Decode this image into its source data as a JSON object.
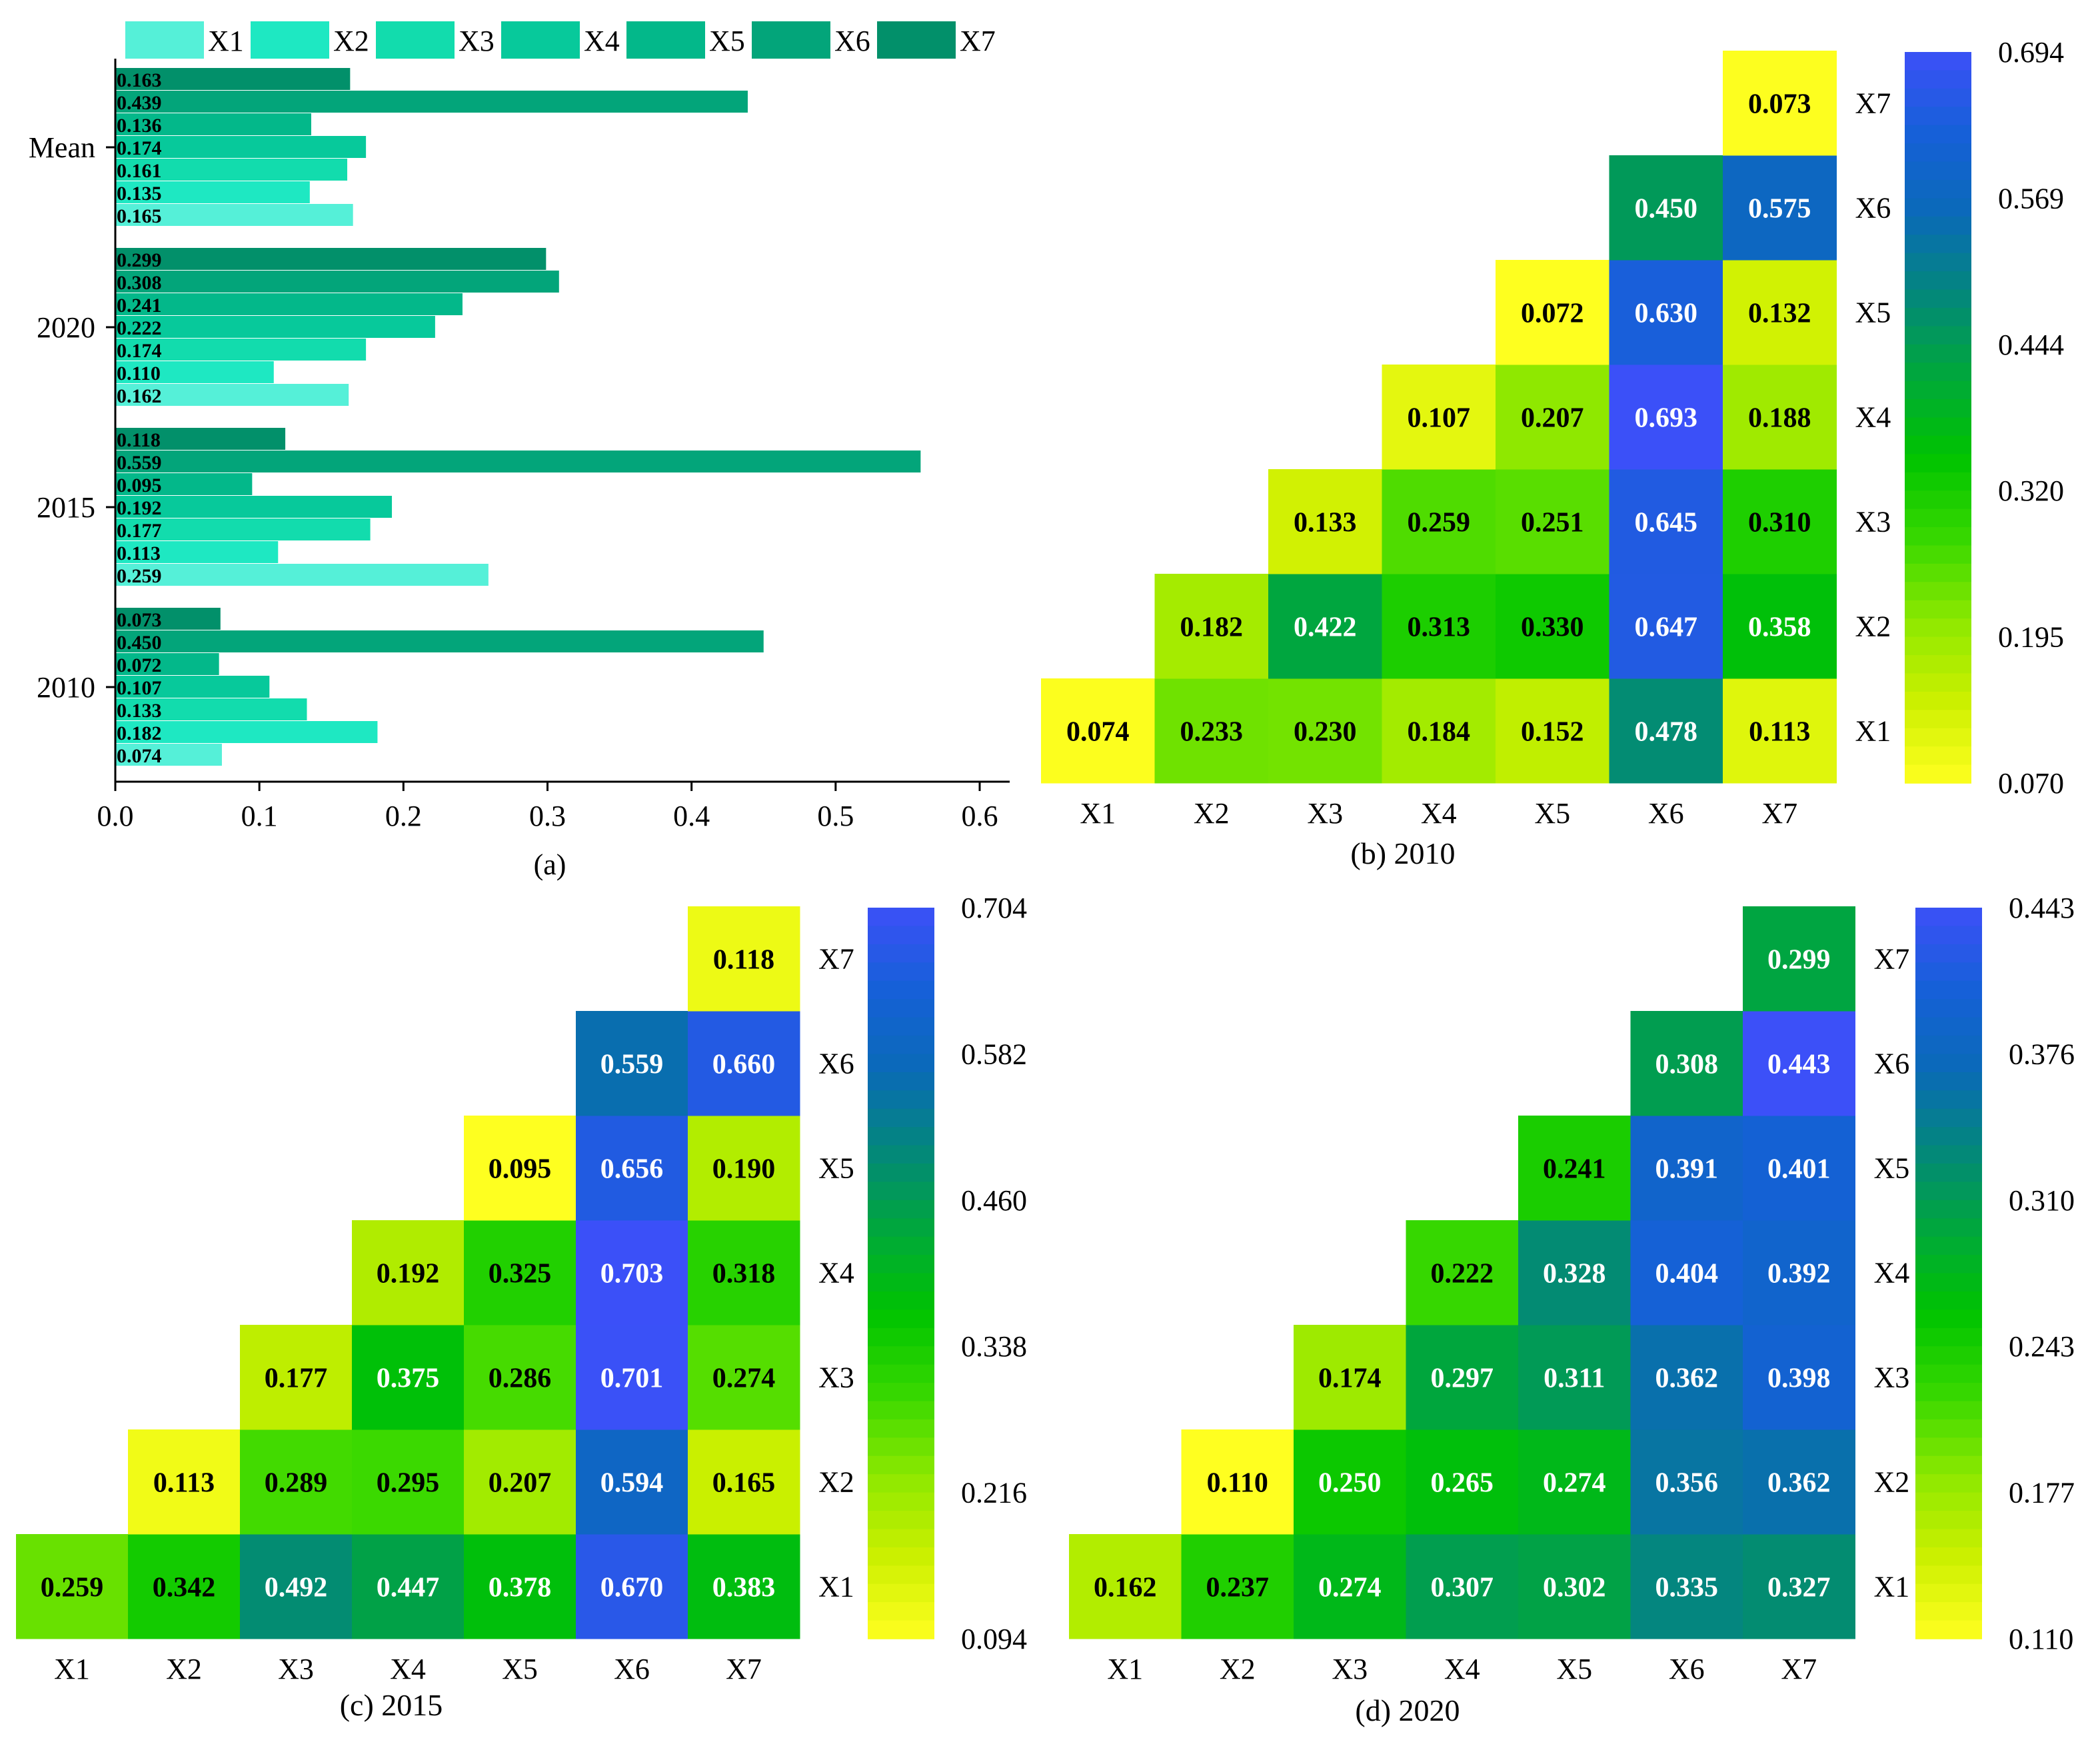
{
  "legend": [
    "X1",
    "X2",
    "X3",
    "X4",
    "X5",
    "X6",
    "X7"
  ],
  "palette": {
    "series": [
      "#55f0d8",
      "#1ee8c2",
      "#12dcad",
      "#07c99b",
      "#03b88a",
      "#03a57a",
      "#02906a"
    ],
    "ramp": [
      "#ffff20",
      "#ccf000",
      "#8de800",
      "#38d800",
      "#00c400",
      "#00a83a",
      "#03887a",
      "#0a6ab8",
      "#1660d8",
      "#3c50f8"
    ],
    "dark_text": "#000000",
    "light_text": "#ffffff"
  },
  "chart_data": [
    {
      "id": "a",
      "type": "bar",
      "orientation": "horizontal",
      "caption": "(a)",
      "categories": [
        "2010",
        "2015",
        "2020",
        "Mean"
      ],
      "series": [
        {
          "name": "X1",
          "values": [
            0.074,
            0.259,
            0.162,
            0.165
          ]
        },
        {
          "name": "X2",
          "values": [
            0.182,
            0.113,
            0.11,
            0.135
          ]
        },
        {
          "name": "X3",
          "values": [
            0.133,
            0.177,
            0.174,
            0.161
          ]
        },
        {
          "name": "X4",
          "values": [
            0.107,
            0.192,
            0.222,
            0.174
          ]
        },
        {
          "name": "X5",
          "values": [
            0.072,
            0.095,
            0.241,
            0.136
          ]
        },
        {
          "name": "X6",
          "values": [
            0.45,
            0.559,
            0.308,
            0.439
          ]
        },
        {
          "name": "X7",
          "values": [
            0.073,
            0.118,
            0.299,
            0.163
          ]
        }
      ],
      "x_ticks": [
        "0.0",
        "0.1",
        "0.2",
        "0.3",
        "0.4",
        "0.5",
        "0.6"
      ],
      "xlim": [
        0,
        0.62
      ]
    },
    {
      "id": "b",
      "type": "heatmap",
      "caption": "(b) 2010",
      "labels": [
        "X1",
        "X2",
        "X3",
        "X4",
        "X5",
        "X6",
        "X7"
      ],
      "rows": [
        [
          "0.074",
          "0.233",
          "0.230",
          "0.184",
          "0.152",
          "0.478",
          "0.113"
        ],
        [
          "",
          "0.182",
          "0.422",
          "0.313",
          "0.330",
          "0.647",
          "0.358"
        ],
        [
          "",
          "",
          "0.133",
          "0.259",
          "0.251",
          "0.645",
          "0.310"
        ],
        [
          "",
          "",
          "",
          "0.107",
          "0.207",
          "0.693",
          "0.188"
        ],
        [
          "",
          "",
          "",
          "",
          "0.072",
          "0.630",
          "0.132"
        ],
        [
          "",
          "",
          "",
          "",
          "",
          "0.450",
          "0.575"
        ],
        [
          "",
          "",
          "",
          "",
          "",
          "",
          "0.073"
        ]
      ],
      "colorbar_ticks": [
        "0.694",
        "0.569",
        "0.444",
        "0.320",
        "0.195",
        "0.070"
      ],
      "range": [
        0.07,
        0.694
      ]
    },
    {
      "id": "c",
      "type": "heatmap",
      "caption": "(c) 2015",
      "labels": [
        "X1",
        "X2",
        "X3",
        "X4",
        "X5",
        "X6",
        "X7"
      ],
      "rows": [
        [
          "0.259",
          "0.342",
          "0.492",
          "0.447",
          "0.378",
          "0.670",
          "0.383"
        ],
        [
          "",
          "0.113",
          "0.289",
          "0.295",
          "0.207",
          "0.594",
          "0.165"
        ],
        [
          "",
          "",
          "0.177",
          "0.375",
          "0.286",
          "0.701",
          "0.274"
        ],
        [
          "",
          "",
          "",
          "0.192",
          "0.325",
          "0.703",
          "0.318"
        ],
        [
          "",
          "",
          "",
          "",
          "0.095",
          "0.656",
          "0.190"
        ],
        [
          "",
          "",
          "",
          "",
          "",
          "0.559",
          "0.660"
        ],
        [
          "",
          "",
          "",
          "",
          "",
          "",
          "0.118"
        ]
      ],
      "colorbar_ticks": [
        "0.704",
        "0.582",
        "0.460",
        "0.338",
        "0.216",
        "0.094"
      ],
      "range": [
        0.094,
        0.704
      ]
    },
    {
      "id": "d",
      "type": "heatmap",
      "caption": "(d) 2020",
      "labels": [
        "X1",
        "X2",
        "X3",
        "X4",
        "X5",
        "X6",
        "X7"
      ],
      "rows": [
        [
          "0.162",
          "0.237",
          "0.274",
          "0.307",
          "0.302",
          "0.335",
          "0.327"
        ],
        [
          "",
          "0.110",
          "0.250",
          "0.265",
          "0.274",
          "0.356",
          "0.362"
        ],
        [
          "",
          "",
          "0.174",
          "0.297",
          "0.311",
          "0.362",
          "0.398"
        ],
        [
          "",
          "",
          "",
          "0.222",
          "0.328",
          "0.404",
          "0.392"
        ],
        [
          "",
          "",
          "",
          "",
          "0.241",
          "0.391",
          "0.401"
        ],
        [
          "",
          "",
          "",
          "",
          "",
          "0.308",
          "0.443"
        ],
        [
          "",
          "",
          "",
          "",
          "",
          "",
          "0.299"
        ]
      ],
      "colorbar_ticks": [
        "0.443",
        "0.376",
        "0.310",
        "0.243",
        "0.177",
        "0.110"
      ],
      "range": [
        0.11,
        0.443
      ]
    }
  ]
}
